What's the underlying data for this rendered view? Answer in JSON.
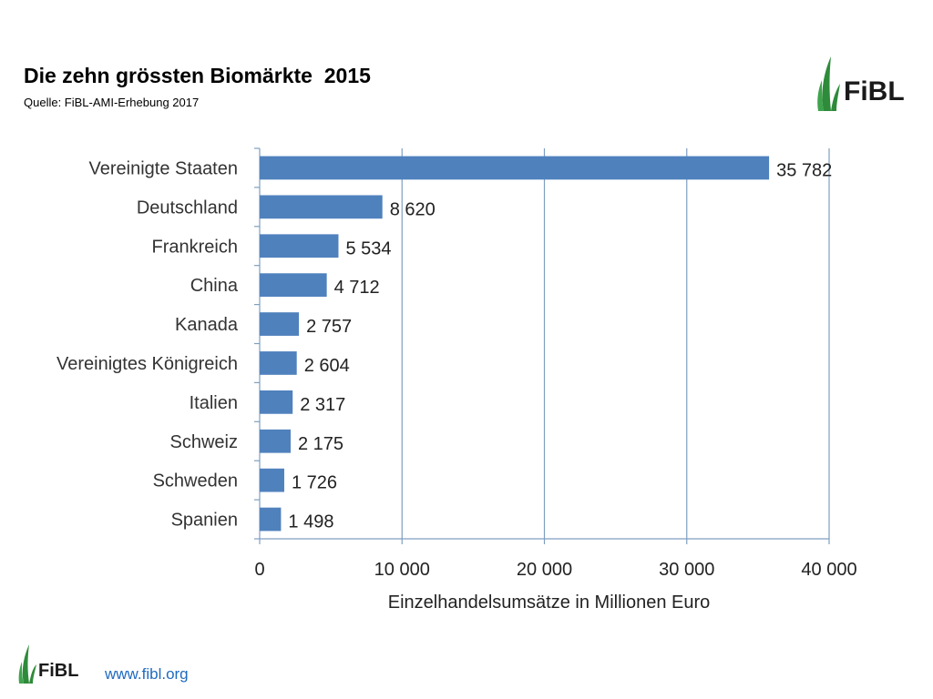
{
  "header": {
    "title": "Die zehn grössten Biomärkte  2015",
    "subtitle": "Quelle: FiBL-AMI-Erhebung 2017",
    "logo_text": "FiBL"
  },
  "footer": {
    "logo_text": "FiBL",
    "url": "www.fibl.org"
  },
  "colors": {
    "bar": "#4f81bd",
    "grid": "#7f9fc0",
    "logo_green": "#2e8b3a",
    "logo_text": "#1a1a1a",
    "url": "#1f6ac0"
  },
  "chart_data": {
    "type": "bar",
    "orientation": "horizontal",
    "categories": [
      "Vereinigte Staaten",
      "Deutschland",
      "Frankreich",
      "China",
      "Kanada",
      "Vereinigtes Königreich",
      "Italien",
      "Schweiz",
      "Schweden",
      "Spanien"
    ],
    "values": [
      35782,
      8620,
      5534,
      4712,
      2757,
      2604,
      2317,
      2175,
      1726,
      1498
    ],
    "value_labels": [
      "35 782",
      "8 620",
      "5 534",
      "4 712",
      "2 757",
      "2 604",
      "2 317",
      "2 175",
      "1 726",
      "1 498"
    ],
    "xlabel": "Einzelhandelsumsätze in Millionen Euro",
    "xlim": [
      0,
      40000
    ],
    "xticks": [
      0,
      10000,
      20000,
      30000,
      40000
    ],
    "xtick_labels": [
      "0",
      "10 000",
      "20 000",
      "30 000",
      "40 000"
    ],
    "grid": true
  }
}
